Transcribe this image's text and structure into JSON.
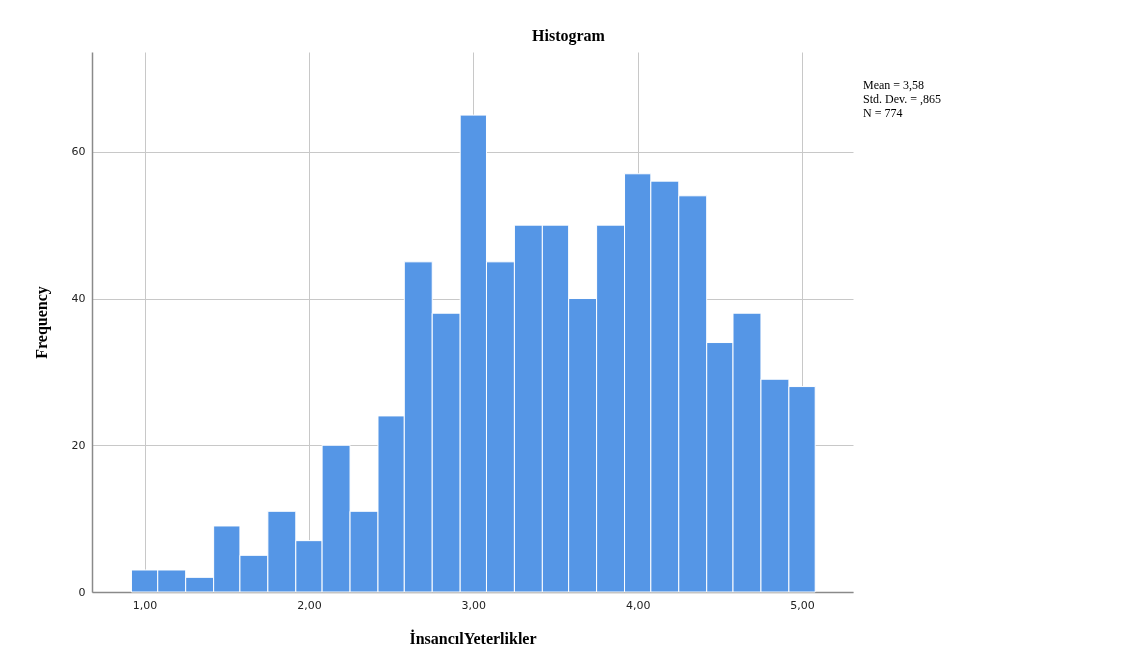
{
  "chart_data": {
    "type": "histogram",
    "title": "Histogram",
    "xlabel": "İnsancılYeterlikler",
    "ylabel": "Frequency",
    "bins": [
      0.92,
      1.08,
      1.25,
      1.42,
      1.58,
      1.75,
      1.92,
      2.08,
      2.25,
      2.42,
      2.58,
      2.75,
      2.92,
      3.08,
      3.25,
      3.42,
      3.58,
      3.75,
      3.92,
      4.08,
      4.25,
      4.42,
      4.58,
      4.75,
      4.92,
      5.08
    ],
    "values": [
      3,
      3,
      2,
      9,
      5,
      11,
      7,
      20,
      11,
      24,
      45,
      38,
      65,
      45,
      50,
      50,
      40,
      50,
      57,
      56,
      54,
      34,
      38,
      29,
      28
    ],
    "color": "#5596e6",
    "xlim": [
      0.68,
      5.31
    ],
    "ylim": [
      0,
      73.6
    ],
    "xticks": [
      {
        "value": 1,
        "label": "1,00"
      },
      {
        "value": 2,
        "label": "2,00"
      },
      {
        "value": 3,
        "label": "3,00"
      },
      {
        "value": 4,
        "label": "4,00"
      },
      {
        "value": 5,
        "label": "5,00"
      }
    ],
    "yticks": [
      0,
      20,
      40,
      60
    ],
    "grid": true,
    "annotations": [
      "Mean = 3,58",
      "Std. Dev. = ,865",
      "N = 774"
    ]
  }
}
